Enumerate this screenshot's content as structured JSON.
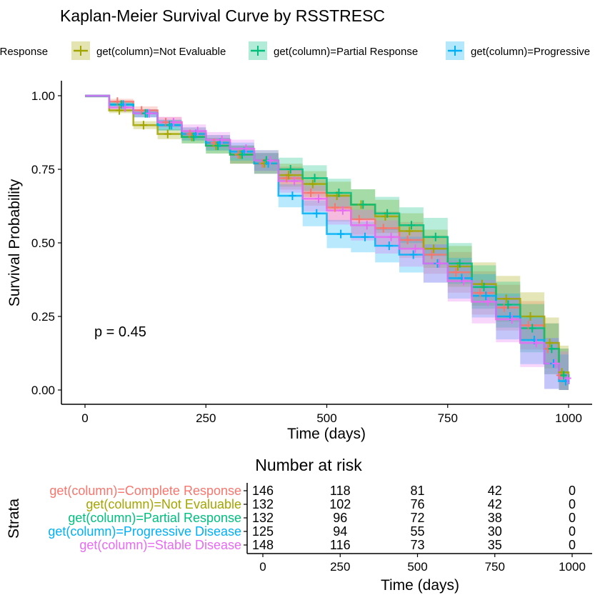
{
  "chart_data": {
    "type": "line",
    "subtype": "kaplan-meier-survival",
    "title": "Kaplan-Meier Survival Curve by RSSTRESC",
    "xlabel": "Time (days)",
    "ylabel": "Survival Probability",
    "xlim": [
      -50,
      1050
    ],
    "ylim": [
      -0.05,
      1.03
    ],
    "x_ticks": [
      0,
      250,
      500,
      750,
      1000
    ],
    "y_ticks": [
      0.0,
      0.25,
      0.5,
      0.75,
      1.0
    ],
    "y_tick_labels": [
      "0.00",
      "0.25",
      "0.50",
      "0.75",
      "1.00"
    ],
    "legend_position": "top",
    "annotation": "p = 0.45",
    "confidence_bands": true,
    "censor_marks": true,
    "series": [
      {
        "name": "get(column)=Complete Response",
        "color": "#F8766D",
        "x": [
          0,
          50,
          100,
          150,
          200,
          250,
          300,
          350,
          400,
          450,
          500,
          550,
          600,
          650,
          700,
          750,
          800,
          850,
          900,
          950,
          980,
          1000
        ],
        "y": [
          1.0,
          0.98,
          0.95,
          0.91,
          0.87,
          0.84,
          0.8,
          0.77,
          0.72,
          0.67,
          0.62,
          0.58,
          0.55,
          0.51,
          0.46,
          0.4,
          0.33,
          0.28,
          0.22,
          0.14,
          0.05,
          0.02
        ]
      },
      {
        "name": "get(column)=Not Evaluable",
        "color": "#A3A500",
        "x": [
          0,
          50,
          100,
          150,
          200,
          250,
          300,
          350,
          400,
          450,
          500,
          550,
          600,
          650,
          700,
          750,
          800,
          850,
          900,
          950,
          980,
          1000
        ],
        "y": [
          1.0,
          0.95,
          0.9,
          0.87,
          0.86,
          0.83,
          0.8,
          0.77,
          0.73,
          0.7,
          0.66,
          0.63,
          0.59,
          0.54,
          0.48,
          0.42,
          0.36,
          0.31,
          0.25,
          0.16,
          0.06,
          0.02
        ]
      },
      {
        "name": "get(column)=Partial Response",
        "color": "#00BF7D",
        "x": [
          0,
          50,
          100,
          150,
          200,
          250,
          300,
          350,
          400,
          450,
          500,
          550,
          600,
          650,
          700,
          750,
          800,
          850,
          900,
          950,
          980,
          1000
        ],
        "y": [
          1.0,
          0.97,
          0.94,
          0.9,
          0.86,
          0.83,
          0.8,
          0.78,
          0.75,
          0.72,
          0.67,
          0.63,
          0.6,
          0.56,
          0.52,
          0.43,
          0.35,
          0.29,
          0.21,
          0.14,
          0.05,
          0.02
        ]
      },
      {
        "name": "get(column)=Progressive Disease",
        "color": "#00B0F6",
        "x": [
          0,
          50,
          100,
          150,
          200,
          250,
          300,
          350,
          400,
          450,
          500,
          550,
          600,
          650,
          700,
          750,
          800,
          850,
          900,
          950,
          980,
          1000
        ],
        "y": [
          1.0,
          0.97,
          0.94,
          0.9,
          0.87,
          0.84,
          0.81,
          0.77,
          0.66,
          0.6,
          0.53,
          0.52,
          0.49,
          0.46,
          0.43,
          0.38,
          0.32,
          0.25,
          0.17,
          0.09,
          0.03,
          0.02
        ]
      },
      {
        "name": "get(column)=Stable Disease",
        "color": "#E76BF3",
        "x": [
          0,
          50,
          100,
          150,
          200,
          250,
          300,
          350,
          400,
          450,
          500,
          550,
          600,
          650,
          700,
          750,
          800,
          850,
          900,
          950,
          980,
          1000
        ],
        "y": [
          1.0,
          0.96,
          0.94,
          0.91,
          0.88,
          0.85,
          0.82,
          0.78,
          0.71,
          0.65,
          0.61,
          0.56,
          0.52,
          0.48,
          0.43,
          0.37,
          0.3,
          0.24,
          0.16,
          0.09,
          0.04,
          0.02
        ]
      }
    ]
  },
  "risk_table": {
    "title": "Number at risk",
    "ylabel": "Strata",
    "xlabel": "Time (days)",
    "x_ticks": [
      "0",
      "250",
      "500",
      "750",
      "1000"
    ],
    "rows": [
      {
        "label": "get(column)=Complete Response",
        "color": "#F8766D",
        "values": [
          "146",
          "118",
          "81",
          "42",
          "0"
        ]
      },
      {
        "label": "get(column)=Not Evaluable",
        "color": "#A3A500",
        "values": [
          "132",
          "102",
          "76",
          "42",
          "0"
        ]
      },
      {
        "label": "get(column)=Partial Response",
        "color": "#00BF7D",
        "values": [
          "132",
          "96",
          "72",
          "38",
          "0"
        ]
      },
      {
        "label": "get(column)=Progressive Disease",
        "color": "#00B0F6",
        "values": [
          "125",
          "94",
          "55",
          "30",
          "0"
        ]
      },
      {
        "label": "get(column)=Stable Disease",
        "color": "#E76BF3",
        "values": [
          "148",
          "116",
          "73",
          "35",
          "0"
        ]
      }
    ]
  },
  "legend": {
    "items": [
      {
        "label": "e Response",
        "color": "#F8766D"
      },
      {
        "label": "get(column)=Not Evaluable",
        "color": "#A3A500"
      },
      {
        "label": "get(column)=Partial Response",
        "color": "#00BF7D"
      },
      {
        "label": "get(column)=Progressive",
        "color": "#00B0F6"
      }
    ]
  }
}
